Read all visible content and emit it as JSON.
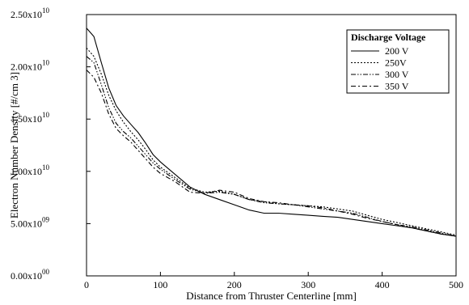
{
  "chart_data": {
    "type": "line",
    "xlabel": "Distance from Thruster Centerline [mm]",
    "ylabel": "Electron Number Density [#/cm 3]",
    "xlim": [
      0,
      500
    ],
    "ylim": [
      0,
      25000000000
    ],
    "x_ticks": [
      0,
      100,
      200,
      300,
      400,
      500
    ],
    "x_tick_labels": [
      "0",
      "100",
      "200",
      "300",
      "400",
      "500"
    ],
    "y_ticks": [
      0,
      5000000000,
      10000000000,
      15000000000,
      20000000000,
      25000000000
    ],
    "y_tick_mantissas": [
      "0.00x10",
      "5.00x10",
      "1.00x10",
      "1.50x10",
      "2.00x10",
      "2.50x10"
    ],
    "y_tick_exponents": [
      "00",
      "09",
      "10",
      "10",
      "10",
      "10"
    ],
    "grid": false,
    "legend_title": "Discharge Voltage",
    "legend_position": "top-right",
    "series": [
      {
        "name": "200 V",
        "dash": "solid",
        "x": [
          0,
          10,
          20,
          30,
          40,
          50,
          60,
          70,
          80,
          90,
          100,
          120,
          140,
          160,
          180,
          200,
          220,
          240,
          260,
          280,
          300,
          320,
          340,
          360,
          380,
          400,
          420,
          440,
          460,
          480,
          500
        ],
        "y": [
          23700000000,
          22900000000,
          20400000000,
          18000000000,
          16300000000,
          15300000000,
          14500000000,
          13700000000,
          12700000000,
          11600000000,
          10900000000,
          9700000000,
          8500000000,
          7800000000,
          7300000000,
          6800000000,
          6300000000,
          6000000000,
          6000000000,
          5900000000,
          5800000000,
          5700000000,
          5600000000,
          5400000000,
          5200000000,
          5000000000,
          4800000000,
          4600000000,
          4300000000,
          4000000000,
          3800000000
        ]
      },
      {
        "name": "250V",
        "dash": "dotted",
        "x": [
          0,
          10,
          20,
          30,
          40,
          50,
          60,
          70,
          80,
          90,
          100,
          120,
          140,
          160,
          180,
          200,
          220,
          240,
          260,
          280,
          300,
          320,
          340,
          360,
          380,
          400,
          420,
          440,
          460,
          480,
          500
        ],
        "y": [
          21800000000,
          21000000000,
          19300000000,
          17300000000,
          15800000000,
          14700000000,
          13800000000,
          13000000000,
          12100000000,
          11100000000,
          10400000000,
          9400000000,
          8400000000,
          8000000000,
          8100000000,
          7800000000,
          7300000000,
          7100000000,
          6900000000,
          6800000000,
          6700000000,
          6600000000,
          6400000000,
          6200000000,
          5800000000,
          5400000000,
          5100000000,
          4800000000,
          4500000000,
          4200000000,
          3900000000
        ]
      },
      {
        "name": "300 V",
        "dash": "dash-dot-dot",
        "x": [
          0,
          10,
          20,
          30,
          40,
          50,
          60,
          70,
          80,
          90,
          100,
          120,
          140,
          160,
          180,
          200,
          220,
          240,
          260,
          280,
          300,
          320,
          340,
          360,
          380,
          400,
          420,
          440,
          460,
          480,
          500
        ],
        "y": [
          21000000000,
          20400000000,
          18300000000,
          16100000000,
          14600000000,
          13800000000,
          13200000000,
          12400000000,
          11600000000,
          10800000000,
          10200000000,
          9200000000,
          8300000000,
          7900000000,
          8000000000,
          7800000000,
          7300000000,
          7000000000,
          6900000000,
          6800000000,
          6600000000,
          6400000000,
          6200000000,
          6000000000,
          5600000000,
          5200000000,
          4900000000,
          4700000000,
          4400000000,
          4100000000,
          3800000000
        ]
      },
      {
        "name": "350 V",
        "dash": "dash-dot",
        "x": [
          0,
          10,
          20,
          30,
          40,
          50,
          60,
          70,
          80,
          90,
          100,
          120,
          140,
          160,
          180,
          200,
          220,
          240,
          260,
          280,
          300,
          320,
          340,
          360,
          380,
          400,
          420,
          440,
          460,
          480,
          500
        ],
        "y": [
          19700000000,
          19000000000,
          17500000000,
          15500000000,
          14100000000,
          13400000000,
          12800000000,
          12000000000,
          11200000000,
          10400000000,
          9800000000,
          9000000000,
          8000000000,
          7900000000,
          8200000000,
          8000000000,
          7400000000,
          7100000000,
          7000000000,
          6800000000,
          6700000000,
          6500000000,
          6200000000,
          5900000000,
          5500000000,
          5200000000,
          4900000000,
          4600000000,
          4300000000,
          4000000000,
          3800000000
        ]
      }
    ]
  }
}
